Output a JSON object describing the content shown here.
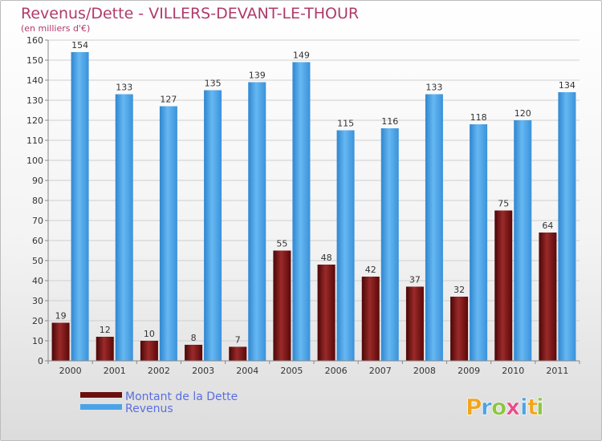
{
  "chart_data": {
    "type": "bar",
    "title": "Revenus/Dette - VILLERS-DEVANT-LE-THOUR",
    "subtitle": "(en milliers d'€)",
    "categories": [
      "2000",
      "2001",
      "2002",
      "2003",
      "2004",
      "2005",
      "2006",
      "2007",
      "2008",
      "2009",
      "2010",
      "2011"
    ],
    "series": [
      {
        "name": "Montant de la Dette",
        "values": [
          19,
          12,
          10,
          8,
          7,
          55,
          48,
          42,
          37,
          32,
          75,
          64
        ],
        "color": "#6b0f0f"
      },
      {
        "name": "Revenus",
        "values": [
          154,
          133,
          127,
          135,
          139,
          149,
          115,
          116,
          133,
          118,
          120,
          134
        ],
        "color": "#4aa3e8"
      }
    ],
    "ylim": [
      0,
      160
    ],
    "yticks": [
      0,
      10,
      20,
      30,
      40,
      50,
      60,
      70,
      80,
      90,
      100,
      110,
      120,
      130,
      140,
      150,
      160
    ],
    "grid": true,
    "legend": "bottom-left"
  },
  "logo": {
    "letters": [
      "P",
      "r",
      "o",
      "x",
      "i",
      "t",
      "i"
    ],
    "colors": [
      "#f2a51a",
      "#4aa3e8",
      "#8cc63f",
      "#e84a8a",
      "#4aa3e8",
      "#f2a51a",
      "#8cc63f"
    ]
  }
}
